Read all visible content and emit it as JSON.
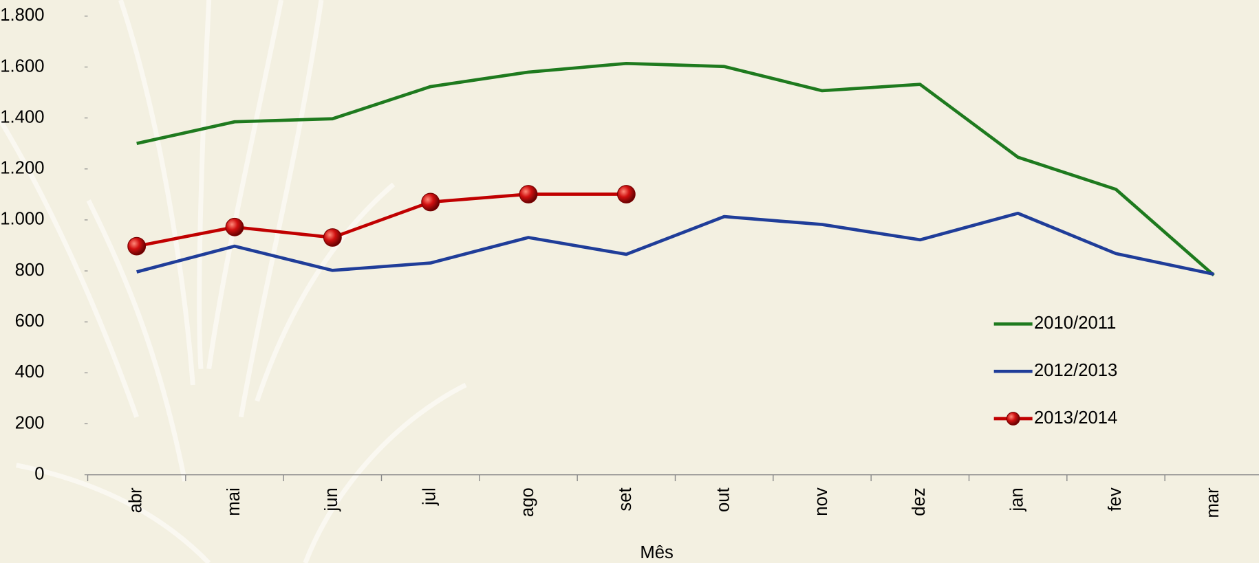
{
  "chart_data": {
    "type": "line",
    "x_label": "Mês",
    "categories": [
      "abr",
      "mai",
      "jun",
      "jul",
      "ago",
      "set",
      "out",
      "nov",
      "dez",
      "jan",
      "fev",
      "mar"
    ],
    "series": [
      {
        "name": "2010/2011",
        "color": "#1e7a1e",
        "values": [
          1300,
          1385,
          1397,
          1523,
          1580,
          1614,
          1602,
          1507,
          1532,
          1246,
          1120,
          783
        ]
      },
      {
        "name": "2012/2013",
        "color": "#1f3d99",
        "values": [
          796,
          897,
          802,
          831,
          931,
          865,
          1013,
          982,
          922,
          1026,
          868,
          787
        ]
      },
      {
        "name": "2013/2014",
        "color": "#c00000",
        "marker": "circle",
        "values": [
          897,
          972,
          931,
          1070,
          1101,
          1101,
          null,
          null,
          null,
          null,
          null,
          null
        ]
      }
    ],
    "ylim": [
      0,
      1800
    ],
    "yticks": [
      0,
      200,
      400,
      600,
      800,
      {
        "value": 1000,
        "label": "1.000"
      },
      {
        "value": 1200,
        "label": "1.200"
      },
      {
        "value": 1400,
        "label": "1.400"
      },
      {
        "value": 1600,
        "label": "1.600"
      },
      {
        "value": 1800,
        "label": "1.800"
      }
    ],
    "legend": "lower right"
  }
}
